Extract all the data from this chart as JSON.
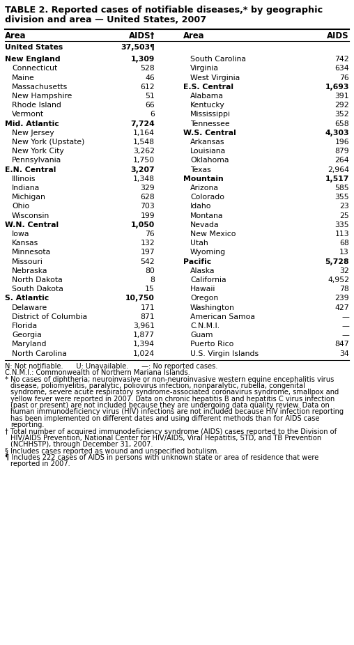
{
  "title_line1": "TABLE 2. Reported cases of notifiable diseases,* by geographic",
  "title_line2": "division and area — United States, 2007",
  "col_headers": [
    "Area",
    "AIDS†",
    "Area",
    "AIDS"
  ],
  "united_states_area": "United States",
  "united_states_aids": "37,503¶",
  "left_rows": [
    {
      "area": "New England",
      "aids": "1,309",
      "bold": true
    },
    {
      "area": "Connecticut",
      "aids": "528",
      "bold": false
    },
    {
      "area": "Maine",
      "aids": "46",
      "bold": false
    },
    {
      "area": "Massachusetts",
      "aids": "612",
      "bold": false
    },
    {
      "area": "New Hampshire",
      "aids": "51",
      "bold": false
    },
    {
      "area": "Rhode Island",
      "aids": "66",
      "bold": false
    },
    {
      "area": "Vermont",
      "aids": "6",
      "bold": false
    },
    {
      "area": "Mid. Atlantic",
      "aids": "7,724",
      "bold": true
    },
    {
      "area": "New Jersey",
      "aids": "1,164",
      "bold": false
    },
    {
      "area": "New York (Upstate)",
      "aids": "1,548",
      "bold": false
    },
    {
      "area": "New York City",
      "aids": "3,262",
      "bold": false
    },
    {
      "area": "Pennsylvania",
      "aids": "1,750",
      "bold": false
    },
    {
      "area": "E.N. Central",
      "aids": "3,207",
      "bold": true
    },
    {
      "area": "Illinois",
      "aids": "1,348",
      "bold": false
    },
    {
      "area": "Indiana",
      "aids": "329",
      "bold": false
    },
    {
      "area": "Michigan",
      "aids": "628",
      "bold": false
    },
    {
      "area": "Ohio",
      "aids": "703",
      "bold": false
    },
    {
      "area": "Wisconsin",
      "aids": "199",
      "bold": false
    },
    {
      "area": "W.N. Central",
      "aids": "1,050",
      "bold": true
    },
    {
      "area": "Iowa",
      "aids": "76",
      "bold": false
    },
    {
      "area": "Kansas",
      "aids": "132",
      "bold": false
    },
    {
      "area": "Minnesota",
      "aids": "197",
      "bold": false
    },
    {
      "area": "Missouri",
      "aids": "542",
      "bold": false
    },
    {
      "area": "Nebraska",
      "aids": "80",
      "bold": false
    },
    {
      "area": "North Dakota",
      "aids": "8",
      "bold": false
    },
    {
      "area": "South Dakota",
      "aids": "15",
      "bold": false
    },
    {
      "area": "S. Atlantic",
      "aids": "10,750",
      "bold": true
    },
    {
      "area": "Delaware",
      "aids": "171",
      "bold": false
    },
    {
      "area": "District of Columbia",
      "aids": "871",
      "bold": false
    },
    {
      "area": "Florida",
      "aids": "3,961",
      "bold": false
    },
    {
      "area": "Georgia",
      "aids": "1,877",
      "bold": false
    },
    {
      "area": "Maryland",
      "aids": "1,394",
      "bold": false
    },
    {
      "area": "North Carolina",
      "aids": "1,024",
      "bold": false
    }
  ],
  "right_rows": [
    {
      "area": "South Carolina",
      "aids": "742",
      "bold": false
    },
    {
      "area": "Virginia",
      "aids": "634",
      "bold": false
    },
    {
      "area": "West Virginia",
      "aids": "76",
      "bold": false
    },
    {
      "area": "E.S. Central",
      "aids": "1,693",
      "bold": true
    },
    {
      "area": "Alabama",
      "aids": "391",
      "bold": false
    },
    {
      "area": "Kentucky",
      "aids": "292",
      "bold": false
    },
    {
      "area": "Mississippi",
      "aids": "352",
      "bold": false
    },
    {
      "area": "Tennessee",
      "aids": "658",
      "bold": false
    },
    {
      "area": "W.S. Central",
      "aids": "4,303",
      "bold": true
    },
    {
      "area": "Arkansas",
      "aids": "196",
      "bold": false
    },
    {
      "area": "Louisiana",
      "aids": "879",
      "bold": false
    },
    {
      "area": "Oklahoma",
      "aids": "264",
      "bold": false
    },
    {
      "area": "Texas",
      "aids": "2,964",
      "bold": false
    },
    {
      "area": "Mountain",
      "aids": "1,517",
      "bold": true
    },
    {
      "area": "Arizona",
      "aids": "585",
      "bold": false
    },
    {
      "area": "Colorado",
      "aids": "355",
      "bold": false
    },
    {
      "area": "Idaho",
      "aids": "23",
      "bold": false
    },
    {
      "area": "Montana",
      "aids": "25",
      "bold": false
    },
    {
      "area": "Nevada",
      "aids": "335",
      "bold": false
    },
    {
      "area": "New Mexico",
      "aids": "113",
      "bold": false
    },
    {
      "area": "Utah",
      "aids": "68",
      "bold": false
    },
    {
      "area": "Wyoming",
      "aids": "13",
      "bold": false
    },
    {
      "area": "Pacific",
      "aids": "5,728",
      "bold": true
    },
    {
      "area": "Alaska",
      "aids": "32",
      "bold": false
    },
    {
      "area": "California",
      "aids": "4,952",
      "bold": false
    },
    {
      "area": "Hawaii",
      "aids": "78",
      "bold": false
    },
    {
      "area": "Oregon",
      "aids": "239",
      "bold": false
    },
    {
      "area": "Washington",
      "aids": "427",
      "bold": false
    },
    {
      "area": "American Samoa",
      "aids": "—",
      "bold": false
    },
    {
      "area": "C.N.M.I.",
      "aids": "—",
      "bold": false
    },
    {
      "area": "Guam",
      "aids": "—",
      "bold": false
    },
    {
      "area": "Puerto Rico",
      "aids": "847",
      "bold": false
    },
    {
      "area": "U.S. Virgin Islands",
      "aids": "34",
      "bold": false
    }
  ],
  "footnote1": "N: Not notifiable.      U: Unavailable.      —: No reported cases.",
  "footnote2": "C.N.M.I.: Commonwealth of Northern Mariana Islands.",
  "footnote3_marker": "* ",
  "footnote3_text": "No cases of diphtheria; neuroinvasive or non-neuroinvasive western equine encephalitis virus disease, poliomyelitis, paralytic, poliovirus infection, nonparalytic, rubella, congenital syndrome, severe acute respiratory syndrome-associated coronavirus syndrome, smallpox and yellow fever were reported in 2007.  Data on chronic hepatitis B and hepatitis C virus infection (past or present) are not included because they are undergoing data quality review.  Data on human immunodeficiency virus (HIV) infections are not included because HIV infection reporting has been implemented on different dates and using different methods than for AIDS case reporting.",
  "footnote4_marker": "† ",
  "footnote4_text": "Total number of acquired immunodeficiency syndrome (AIDS) cases reported to the Division of HIV/AIDS Prevention, National Center for HIV/AIDS, Viral Hepatitis, STD, and TB Prevention (NCHHSTP), through December 31, 2007.",
  "footnote5_marker": "§ ",
  "footnote5_text": "Includes cases reported as wound and unspecified botulism.",
  "footnote6_marker": "¶ ",
  "footnote6_text": "Includes 222 cases of AIDS in persons with unknown state or area of residence that were reported in 2007."
}
